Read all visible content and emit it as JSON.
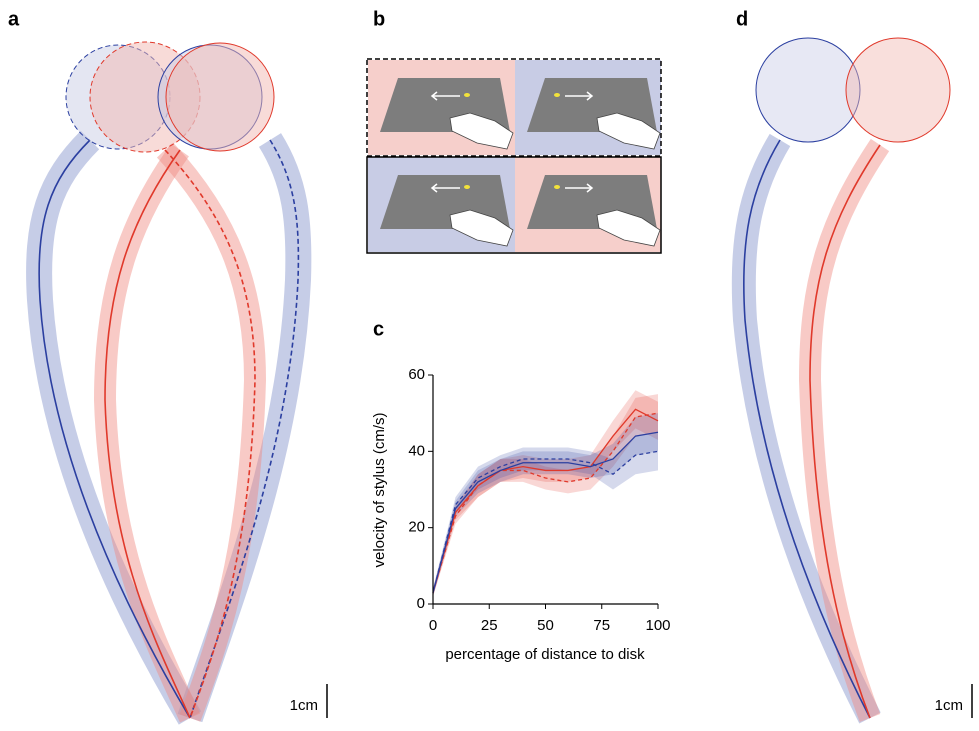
{
  "panel_labels": [
    "a",
    "b",
    "c",
    "d"
  ],
  "scale_bars": [
    "1cm",
    "1cm"
  ],
  "chart_data": {
    "type": "line",
    "x_label": "percentage of distance to disk",
    "y_label": "velocity of stylus (cm/s)",
    "x": [
      0,
      10,
      20,
      30,
      40,
      50,
      60,
      70,
      80,
      90,
      100
    ],
    "xlim": [
      0,
      100
    ],
    "xticks": [
      0,
      25,
      50,
      75,
      100
    ],
    "ylim": [
      0,
      60
    ],
    "yticks": [
      0,
      20,
      40,
      60
    ],
    "series": [
      {
        "color": "#e0392b",
        "dash": false,
        "values": [
          3,
          24,
          31,
          35,
          36,
          35,
          35,
          36,
          44,
          51,
          48
        ],
        "errors": [
          1,
          2,
          3,
          3,
          3,
          3,
          3,
          3,
          4,
          5,
          5
        ]
      },
      {
        "color": "#e0392b",
        "dash": true,
        "values": [
          3,
          23,
          31,
          35,
          35,
          33,
          32,
          33,
          40,
          49,
          50
        ],
        "errors": [
          1,
          2,
          3,
          3,
          3,
          3,
          3,
          3,
          4,
          5,
          5
        ]
      },
      {
        "color": "#2b3fa0",
        "dash": false,
        "values": [
          3,
          25,
          32,
          35,
          37,
          37,
          37,
          36,
          38,
          44,
          45
        ],
        "errors": [
          1,
          2,
          3,
          3,
          3,
          3,
          3,
          3,
          4,
          5,
          5
        ]
      },
      {
        "color": "#2b3fa0",
        "dash": true,
        "values": [
          3,
          26,
          33,
          36,
          38,
          38,
          38,
          37,
          34,
          39,
          40
        ],
        "errors": [
          1,
          2,
          3,
          3,
          3,
          3,
          3,
          3,
          4,
          5,
          5
        ]
      }
    ]
  }
}
